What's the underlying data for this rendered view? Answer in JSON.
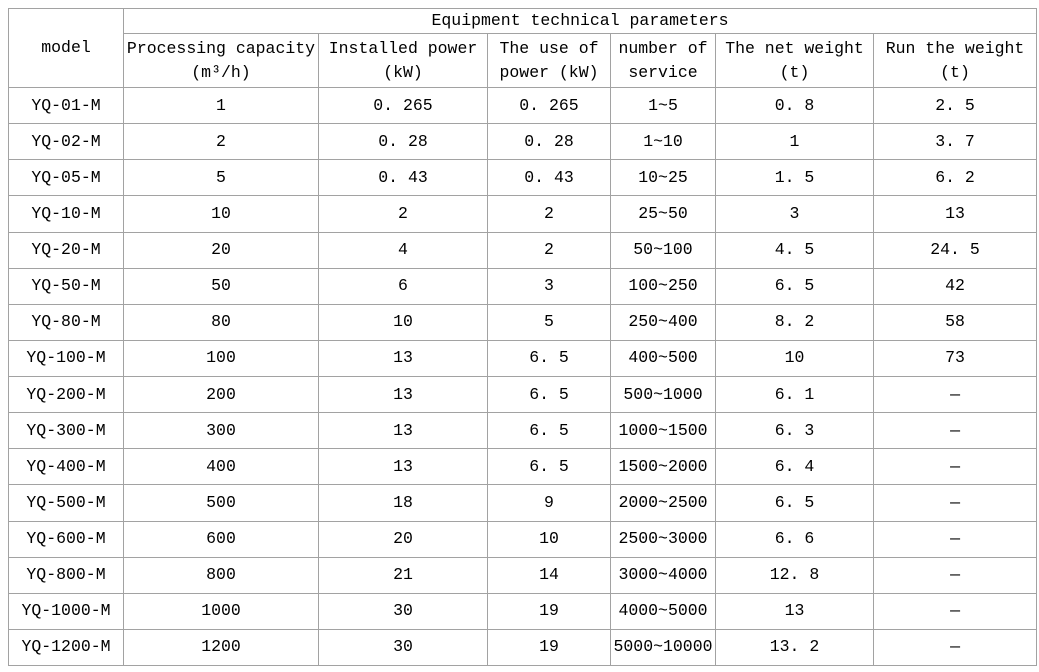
{
  "colors": {
    "background": "#ffffff",
    "border": "#a2a2a2",
    "text": "#000000"
  },
  "table": {
    "top_header": "Equipment technical parameters",
    "model_header": "model",
    "columns": [
      {
        "line1": "Processing capacity",
        "line2": "(m³/h)"
      },
      {
        "line1": "Installed power",
        "line2": "(kW)"
      },
      {
        "line1": "The use of",
        "line2": "power (kW)"
      },
      {
        "line1": "number of",
        "line2": "service"
      },
      {
        "line1": "The net weight",
        "line2": "(t)"
      },
      {
        "line1": "Run the weight",
        "line2": "(t)"
      }
    ],
    "row_keys": [
      "model",
      "capacity",
      "installed",
      "use",
      "service",
      "net",
      "run"
    ],
    "rows": [
      {
        "model": "YQ-01-M",
        "capacity": "1",
        "installed": "0. 265",
        "use": "0. 265",
        "service": "1~5",
        "net": "0. 8",
        "run": "2. 5"
      },
      {
        "model": "YQ-02-M",
        "capacity": "2",
        "installed": "0. 28",
        "use": "0. 28",
        "service": "1~10",
        "net": "1",
        "run": "3. 7"
      },
      {
        "model": "YQ-05-M",
        "capacity": "5",
        "installed": "0. 43",
        "use": "0. 43",
        "service": "10~25",
        "net": "1. 5",
        "run": "6. 2"
      },
      {
        "model": "YQ-10-M",
        "capacity": "10",
        "installed": "2",
        "use": "2",
        "service": "25~50",
        "net": "3",
        "run": "13"
      },
      {
        "model": "YQ-20-M",
        "capacity": "20",
        "installed": "4",
        "use": "2",
        "service": "50~100",
        "net": "4. 5",
        "run": "24. 5"
      },
      {
        "model": "YQ-50-M",
        "capacity": "50",
        "installed": "6",
        "use": "3",
        "service": "100~250",
        "net": "6. 5",
        "run": "42"
      },
      {
        "model": "YQ-80-M",
        "capacity": "80",
        "installed": "10",
        "use": "5",
        "service": "250~400",
        "net": "8. 2",
        "run": "58"
      },
      {
        "model": "YQ-100-M",
        "capacity": "100",
        "installed": "13",
        "use": "6. 5",
        "service": "400~500",
        "net": "10",
        "run": "73"
      },
      {
        "model": "YQ-200-M",
        "capacity": "200",
        "installed": "13",
        "use": "6. 5",
        "service": "500~1000",
        "net": "6. 1",
        "run": "—"
      },
      {
        "model": "YQ-300-M",
        "capacity": "300",
        "installed": "13",
        "use": "6. 5",
        "service": "1000~1500",
        "net": "6. 3",
        "run": "—"
      },
      {
        "model": "YQ-400-M",
        "capacity": "400",
        "installed": "13",
        "use": "6. 5",
        "service": "1500~2000",
        "net": "6. 4",
        "run": "—"
      },
      {
        "model": "YQ-500-M",
        "capacity": "500",
        "installed": "18",
        "use": "9",
        "service": "2000~2500",
        "net": "6. 5",
        "run": "—"
      },
      {
        "model": "YQ-600-M",
        "capacity": "600",
        "installed": "20",
        "use": "10",
        "service": "2500~3000",
        "net": "6. 6",
        "run": "—"
      },
      {
        "model": "YQ-800-M",
        "capacity": "800",
        "installed": "21",
        "use": "14",
        "service": "3000~4000",
        "net": "12. 8",
        "run": "—"
      },
      {
        "model": "YQ-1000-M",
        "capacity": "1000",
        "installed": "30",
        "use": "19",
        "service": "4000~5000",
        "net": "13",
        "run": "—"
      },
      {
        "model": "YQ-1200-M",
        "capacity": "1200",
        "installed": "30",
        "use": "19",
        "service": "5000~10000",
        "net": "13. 2",
        "run": "—"
      }
    ]
  }
}
